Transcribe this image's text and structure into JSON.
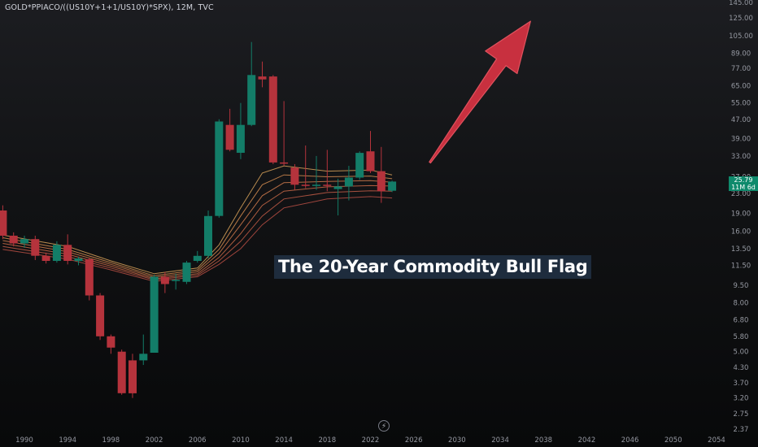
{
  "header": {
    "title": "GOLD*PPIACO/((US10Y+1+1/US10Y)*SPX), 12M, TVC"
  },
  "annotation": {
    "text": "The 20-Year Commodity Bull Flag"
  },
  "price_badge": {
    "price": "25.79",
    "countdown": "11M 6d",
    "color": "#0f8a6c"
  },
  "colors": {
    "up": "#137d68",
    "down": "#b5333c",
    "arrow": "#c8303f",
    "ribbon": [
      "#d8a25a",
      "#d48c50",
      "#cf7a4c",
      "#c96a48",
      "#c25c46",
      "#b84f44"
    ]
  },
  "icons": {
    "bottom_center": "lightning-icon"
  },
  "chart_data": {
    "type": "candlestick",
    "symbol": "GOLD*PPIACO/((US10Y+1+1/US10Y)*SPX)",
    "interval": "12M",
    "source": "TVC",
    "y_scale": "log",
    "ylim": [
      2.3,
      145
    ],
    "xlim": [
      1988,
      2055
    ],
    "y_ticks": [
      "145.00",
      "125.00",
      "105.00",
      "89.00",
      "77.00",
      "65.00",
      "55.00",
      "47.00",
      "39.00",
      "33.00",
      "27.00",
      "23.00",
      "19.00",
      "16.00",
      "13.50",
      "11.50",
      "9.50",
      "8.00",
      "6.80",
      "5.80",
      "5.00",
      "4.30",
      "3.70",
      "3.20",
      "2.75",
      "2.37"
    ],
    "x_ticks": [
      "1990",
      "1994",
      "1998",
      "2002",
      "2006",
      "2010",
      "2014",
      "2018",
      "2022",
      "2026",
      "2030",
      "2034",
      "2038",
      "2042",
      "2046",
      "2050",
      "2054"
    ],
    "candles": [
      {
        "year": 1988,
        "open": 19.5,
        "high": 20.5,
        "low": 14.8,
        "close": 15.3
      },
      {
        "year": 1989,
        "open": 15.3,
        "high": 15.8,
        "low": 13.8,
        "close": 14.2
      },
      {
        "year": 1990,
        "open": 14.2,
        "high": 15.3,
        "low": 13.6,
        "close": 14.8
      },
      {
        "year": 1991,
        "open": 14.8,
        "high": 15.3,
        "low": 12.1,
        "close": 12.6
      },
      {
        "year": 1992,
        "open": 12.6,
        "high": 13.0,
        "low": 11.7,
        "close": 12.0
      },
      {
        "year": 1993,
        "open": 12.0,
        "high": 14.5,
        "low": 11.8,
        "close": 14.0
      },
      {
        "year": 1994,
        "open": 14.0,
        "high": 15.5,
        "low": 11.6,
        "close": 12.0
      },
      {
        "year": 1995,
        "open": 12.0,
        "high": 12.5,
        "low": 11.5,
        "close": 12.3
      },
      {
        "year": 1996,
        "open": 12.2,
        "high": 12.4,
        "low": 8.2,
        "close": 8.6
      },
      {
        "year": 1997,
        "open": 8.6,
        "high": 8.8,
        "low": 5.6,
        "close": 5.8
      },
      {
        "year": 1998,
        "open": 5.8,
        "high": 5.9,
        "low": 4.9,
        "close": 5.2
      },
      {
        "year": 1999,
        "open": 5.0,
        "high": 5.1,
        "low": 3.3,
        "close": 3.35
      },
      {
        "year": 2000,
        "open": 4.6,
        "high": 4.9,
        "low": 3.2,
        "close": 3.35
      },
      {
        "year": 2001,
        "open": 4.6,
        "high": 5.9,
        "low": 4.4,
        "close": 4.9
      },
      {
        "year": 2002,
        "open": 4.95,
        "high": 10.5,
        "low": 4.95,
        "close": 10.3
      },
      {
        "year": 2003,
        "open": 10.3,
        "high": 10.8,
        "low": 8.8,
        "close": 9.6
      },
      {
        "year": 2004,
        "open": 9.9,
        "high": 10.6,
        "low": 9.1,
        "close": 10.0
      },
      {
        "year": 2005,
        "open": 9.8,
        "high": 12.0,
        "low": 9.6,
        "close": 11.8
      },
      {
        "year": 2006,
        "open": 12.0,
        "high": 13.2,
        "low": 11.8,
        "close": 12.6
      },
      {
        "year": 2007,
        "open": 12.6,
        "high": 19.5,
        "low": 12.3,
        "close": 18.5
      },
      {
        "year": 2008,
        "open": 18.5,
        "high": 47.0,
        "low": 18.2,
        "close": 46.0
      },
      {
        "year": 2009,
        "open": 44.5,
        "high": 52.0,
        "low": 34.5,
        "close": 35.0
      },
      {
        "year": 2010,
        "open": 34.0,
        "high": 55.0,
        "low": 32.0,
        "close": 44.5
      },
      {
        "year": 2011,
        "open": 44.5,
        "high": 99.0,
        "low": 44.0,
        "close": 72.0
      },
      {
        "year": 2012,
        "open": 71.0,
        "high": 82.0,
        "low": 64.0,
        "close": 69.0
      },
      {
        "year": 2013,
        "open": 71.0,
        "high": 72.0,
        "low": 30.5,
        "close": 31.0
      },
      {
        "year": 2014,
        "open": 31.0,
        "high": 56.0,
        "low": 30.0,
        "close": 30.8
      },
      {
        "year": 2015,
        "open": 29.5,
        "high": 30.5,
        "low": 23.8,
        "close": 25.0
      },
      {
        "year": 2016,
        "open": 25.0,
        "high": 36.5,
        "low": 24.2,
        "close": 24.8
      },
      {
        "year": 2017,
        "open": 24.8,
        "high": 33.0,
        "low": 23.8,
        "close": 25.0
      },
      {
        "year": 2018,
        "open": 25.0,
        "high": 35.0,
        "low": 23.5,
        "close": 24.8
      },
      {
        "year": 2019,
        "open": 24.0,
        "high": 26.5,
        "low": 18.6,
        "close": 24.6
      },
      {
        "year": 2020,
        "open": 24.6,
        "high": 30.0,
        "low": 21.5,
        "close": 26.8
      },
      {
        "year": 2021,
        "open": 26.8,
        "high": 34.5,
        "low": 26.2,
        "close": 34.0
      },
      {
        "year": 2022,
        "open": 34.5,
        "high": 42.0,
        "low": 28.0,
        "close": 28.5
      },
      {
        "year": 2023,
        "open": 28.5,
        "high": 36.0,
        "low": 21.0,
        "close": 23.5
      },
      {
        "year": 2024,
        "open": 23.6,
        "high": 26.0,
        "low": 23.3,
        "close": 25.79
      }
    ],
    "moving_averages": [
      {
        "points": [
          [
            1988,
            15.4
          ],
          [
            1994,
            13.8
          ],
          [
            1998,
            12.0
          ],
          [
            2002,
            10.6
          ],
          [
            2006,
            11.2
          ],
          [
            2008,
            14.0
          ],
          [
            2010,
            20.0
          ],
          [
            2012,
            28.0
          ],
          [
            2014,
            30.0
          ],
          [
            2018,
            28.5
          ],
          [
            2022,
            28.8
          ],
          [
            2024,
            27.5
          ]
        ]
      },
      {
        "points": [
          [
            1988,
            15.0
          ],
          [
            1994,
            13.4
          ],
          [
            1998,
            11.8
          ],
          [
            2002,
            10.4
          ],
          [
            2006,
            11.0
          ],
          [
            2008,
            13.4
          ],
          [
            2010,
            18.5
          ],
          [
            2012,
            25.0
          ],
          [
            2014,
            27.5
          ],
          [
            2018,
            27.0
          ],
          [
            2022,
            27.2
          ],
          [
            2024,
            26.5
          ]
        ]
      },
      {
        "points": [
          [
            1988,
            14.6
          ],
          [
            1994,
            13.1
          ],
          [
            1998,
            11.6
          ],
          [
            2002,
            10.25
          ],
          [
            2006,
            10.8
          ],
          [
            2008,
            12.9
          ],
          [
            2010,
            17.0
          ],
          [
            2012,
            22.5
          ],
          [
            2014,
            25.5
          ],
          [
            2018,
            25.8
          ],
          [
            2022,
            26.0
          ],
          [
            2024,
            25.6
          ]
        ]
      },
      {
        "points": [
          [
            1988,
            14.2
          ],
          [
            1994,
            12.8
          ],
          [
            1998,
            11.4
          ],
          [
            2002,
            10.1
          ],
          [
            2006,
            10.6
          ],
          [
            2008,
            12.4
          ],
          [
            2010,
            15.6
          ],
          [
            2012,
            20.5
          ],
          [
            2014,
            23.5
          ],
          [
            2018,
            24.5
          ],
          [
            2022,
            24.8
          ],
          [
            2024,
            24.7
          ]
        ]
      },
      {
        "points": [
          [
            1988,
            13.8
          ],
          [
            1994,
            12.5
          ],
          [
            1998,
            11.2
          ],
          [
            2002,
            10.0
          ],
          [
            2006,
            10.45
          ],
          [
            2008,
            12.0
          ],
          [
            2010,
            14.5
          ],
          [
            2012,
            18.5
          ],
          [
            2014,
            21.8
          ],
          [
            2018,
            23.2
          ],
          [
            2022,
            23.6
          ],
          [
            2024,
            23.5
          ]
        ]
      },
      {
        "points": [
          [
            1988,
            13.4
          ],
          [
            1994,
            12.2
          ],
          [
            1998,
            11.0
          ],
          [
            2002,
            9.85
          ],
          [
            2006,
            10.3
          ],
          [
            2008,
            11.6
          ],
          [
            2010,
            13.5
          ],
          [
            2012,
            17.0
          ],
          [
            2014,
            20.0
          ],
          [
            2018,
            21.8
          ],
          [
            2022,
            22.3
          ],
          [
            2024,
            22.0
          ]
        ]
      }
    ],
    "arrow": {
      "from": {
        "year": 2027.5,
        "value": 31.0
      },
      "to": {
        "year": 2036.8,
        "value": 121.0
      }
    }
  }
}
